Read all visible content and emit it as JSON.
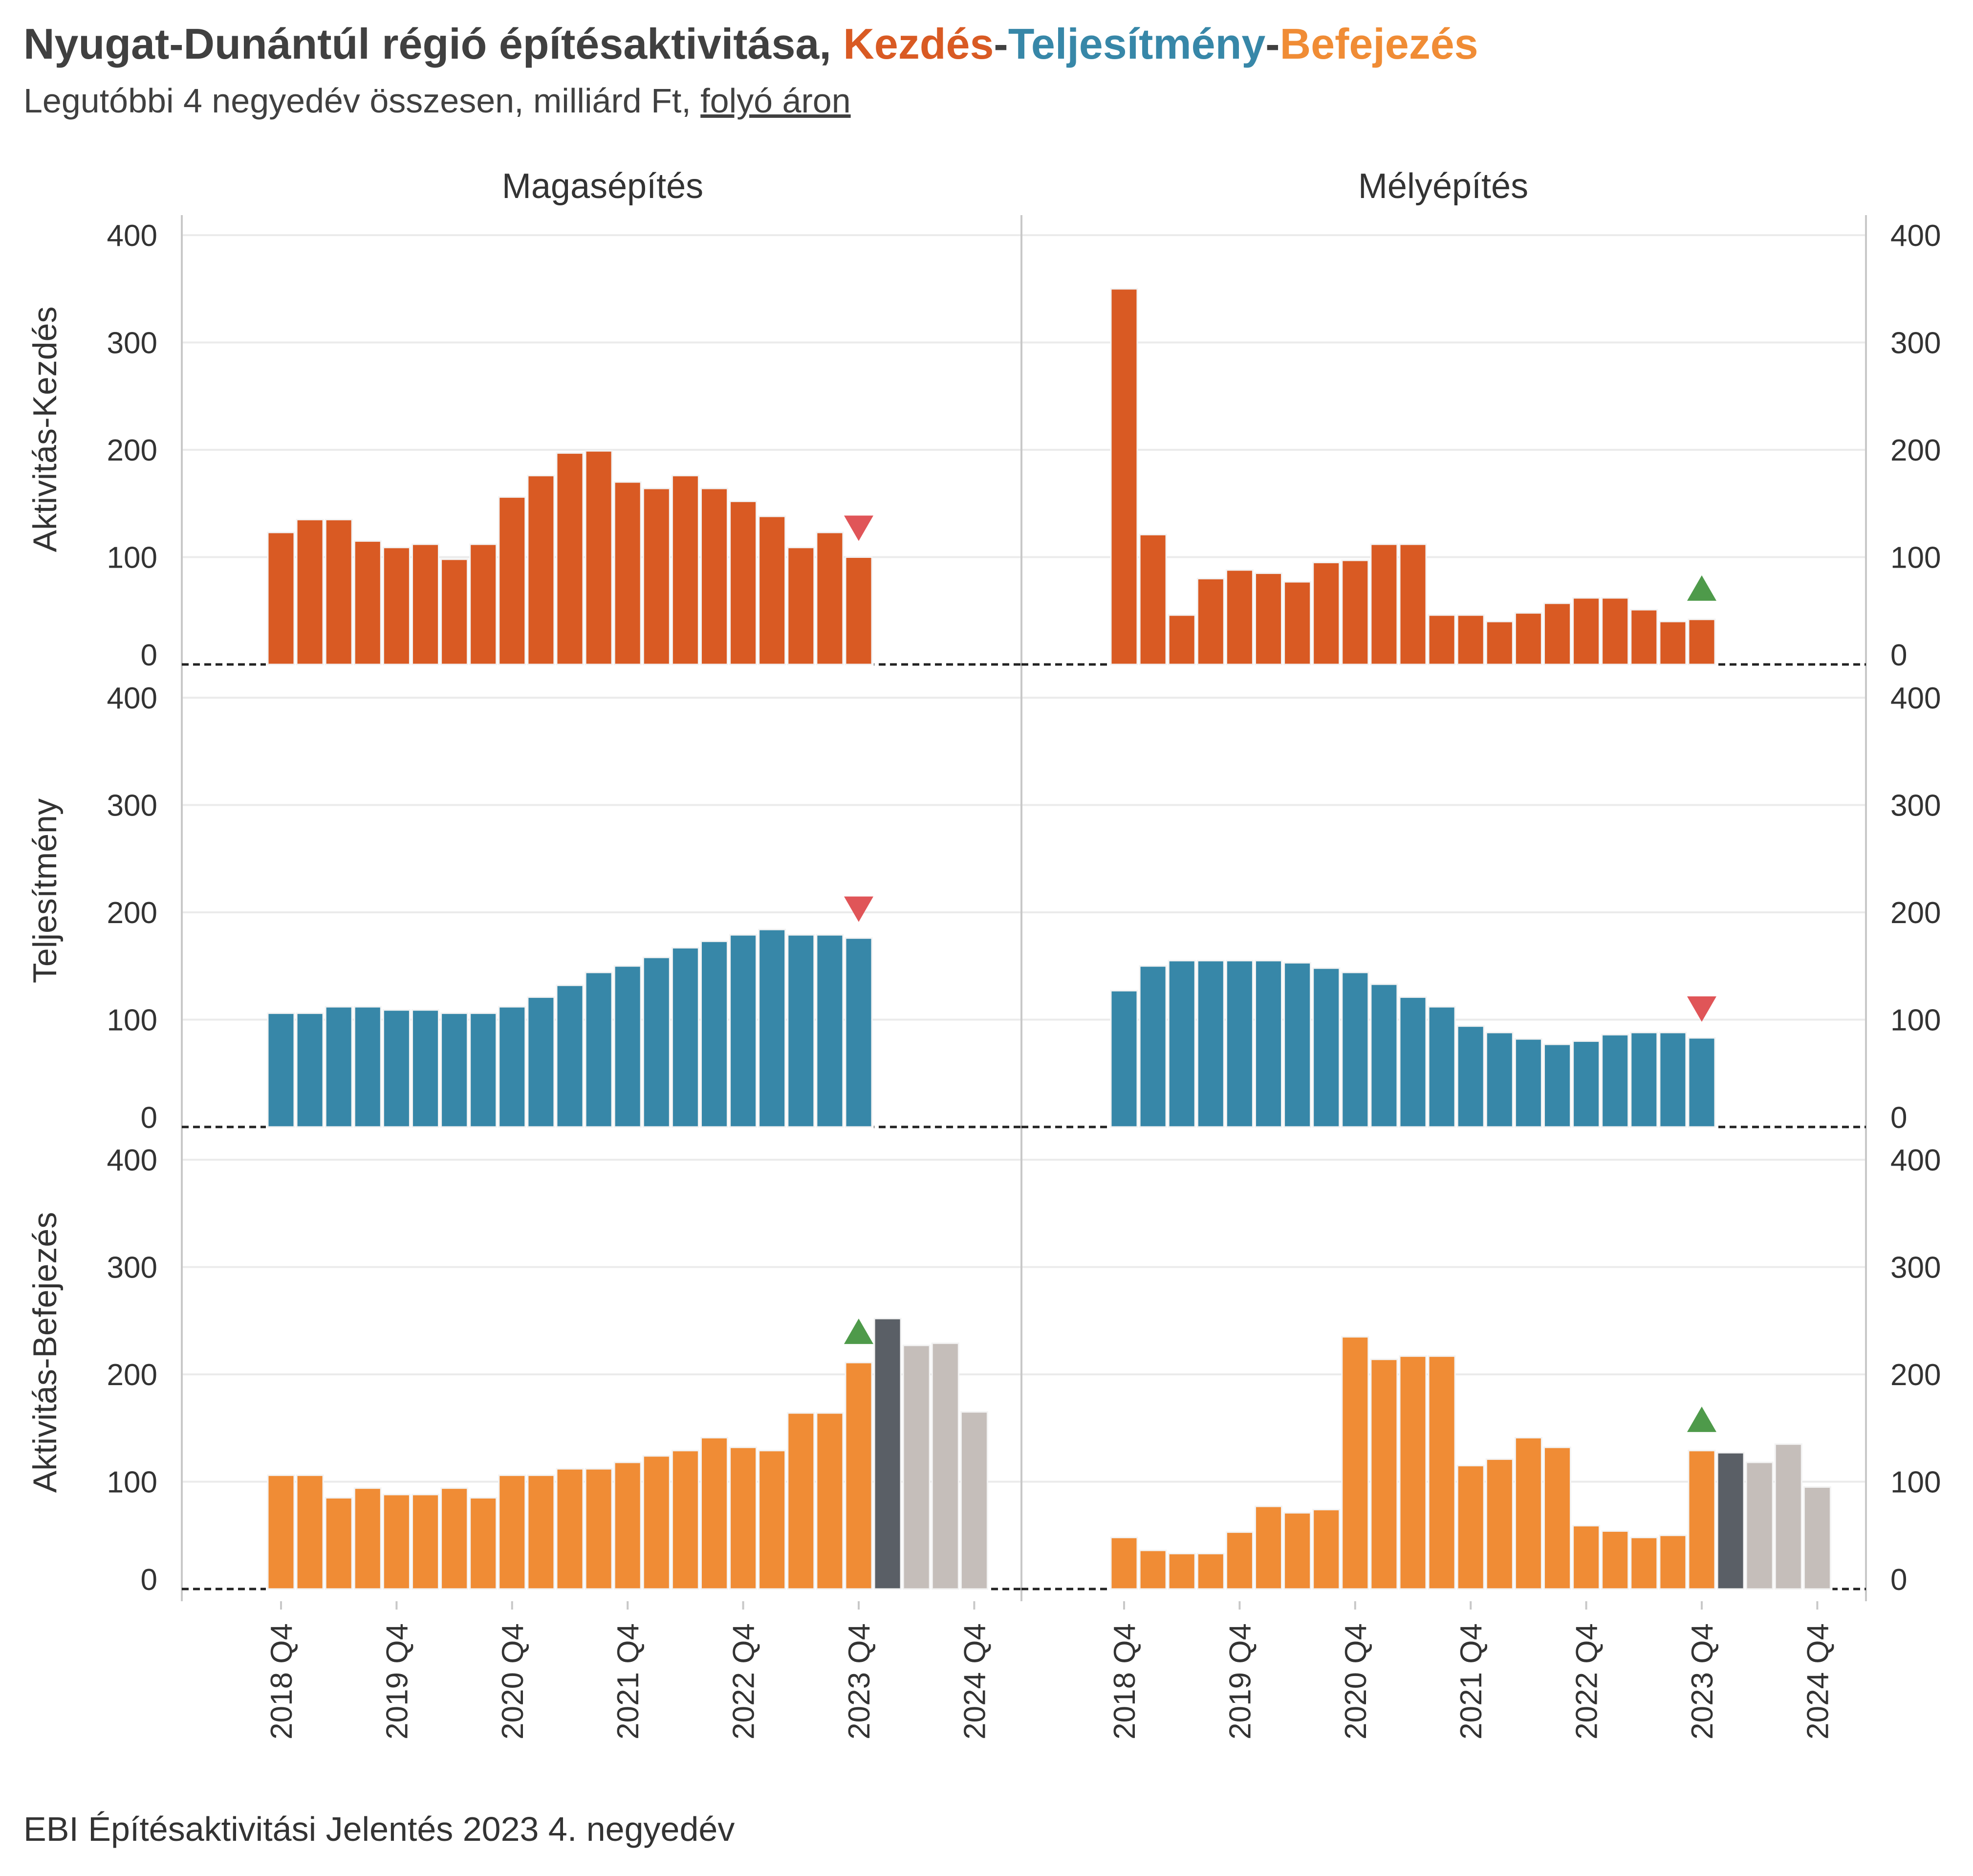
{
  "title": {
    "prefix": "Nyugat-Dunántúl régió építésaktivitása, ",
    "part1": "Kezdés",
    "sep1": "-",
    "part2": "Teljesítmény",
    "sep2": "-",
    "part3": "Befejezés",
    "part1_color": "#D95A23",
    "part2_color": "#3787A8",
    "part3_color": "#F08C35"
  },
  "subtitle": {
    "text": "Legutóbbi 4 negyedév összesen, milliárd Ft, ",
    "underlined": "folyó áron"
  },
  "caption": "EBI Építésaktivitási Jelentés 2023 4. negyedév",
  "colors": {
    "kezdes": "#D95A23",
    "teljesitmeny": "#3787A8",
    "befejezes": "#F08C35",
    "forecast_first": "#5A5F66",
    "forecast_rest": "#C5BEBA",
    "up_marker": "#4E9A4A",
    "down_marker": "#E05558"
  },
  "chart_data": {
    "type": "bar",
    "columns": [
      "Magasépítés",
      "Mélyépítés"
    ],
    "rows": [
      "Aktivitás-Kezdés",
      "Teljesítmény",
      "Aktivitás-Befejezés"
    ],
    "x_ticks": [
      "2018 Q4",
      "2019 Q4",
      "2020 Q4",
      "2021 Q4",
      "2022 Q4",
      "2023 Q4",
      "2024 Q4"
    ],
    "y_ticks": [
      0,
      100,
      200,
      300,
      400
    ],
    "ylim": [
      0,
      400
    ],
    "quarters": [
      "2018 Q4",
      "2019 Q1",
      "2019 Q2",
      "2019 Q3",
      "2019 Q4",
      "2020 Q1",
      "2020 Q2",
      "2020 Q3",
      "2020 Q4",
      "2021 Q1",
      "2021 Q2",
      "2021 Q3",
      "2021 Q4",
      "2022 Q1",
      "2022 Q2",
      "2022 Q3",
      "2022 Q4",
      "2023 Q1",
      "2023 Q2",
      "2023 Q3",
      "2023 Q4",
      "2024 Q1",
      "2024 Q2",
      "2024 Q3",
      "2024 Q4"
    ],
    "panels": [
      {
        "row": "Aktivitás-Kezdés",
        "column": "Magasépítés",
        "series": "kezdes",
        "values": [
          123,
          135,
          135,
          115,
          109,
          112,
          98,
          112,
          156,
          176,
          197,
          199,
          170,
          164,
          176,
          164,
          152,
          138,
          109,
          123,
          100
        ],
        "forecast": [],
        "marker": "down"
      },
      {
        "row": "Aktivitás-Kezdés",
        "column": "Mélyépítés",
        "series": "kezdes",
        "values": [
          350,
          121,
          46,
          80,
          88,
          85,
          77,
          95,
          97,
          112,
          112,
          46,
          46,
          40,
          48,
          57,
          62,
          62,
          51,
          40,
          42
        ],
        "forecast": [],
        "marker": "up"
      },
      {
        "row": "Teljesítmény",
        "column": "Magasépítés",
        "series": "teljesitmeny",
        "values": [
          106,
          106,
          112,
          112,
          109,
          109,
          106,
          106,
          112,
          121,
          132,
          144,
          150,
          158,
          167,
          173,
          179,
          184,
          179,
          179,
          176
        ],
        "forecast": [],
        "marker": "down"
      },
      {
        "row": "Teljesítmény",
        "column": "Mélyépítés",
        "series": "teljesitmeny",
        "values": [
          127,
          150,
          155,
          155,
          155,
          155,
          153,
          148,
          144,
          133,
          121,
          112,
          94,
          88,
          82,
          77,
          80,
          86,
          88,
          88,
          83
        ],
        "forecast": [],
        "marker": "down"
      },
      {
        "row": "Aktivitás-Befejezés",
        "column": "Magasépítés",
        "series": "befejezes",
        "values": [
          106,
          106,
          85,
          94,
          88,
          88,
          94,
          85,
          106,
          106,
          112,
          112,
          118,
          124,
          129,
          141,
          132,
          129,
          164,
          164,
          211
        ],
        "forecast": [
          252,
          227,
          229,
          165
        ],
        "marker": "up"
      },
      {
        "row": "Aktivitás-Befejezés",
        "column": "Mélyépítés",
        "series": "befejezes",
        "values": [
          48,
          36,
          33,
          33,
          53,
          77,
          71,
          74,
          235,
          214,
          217,
          217,
          115,
          121,
          141,
          132,
          59,
          54,
          48,
          50,
          129
        ],
        "forecast": [
          127,
          118,
          135,
          95
        ],
        "marker": "up"
      }
    ]
  }
}
